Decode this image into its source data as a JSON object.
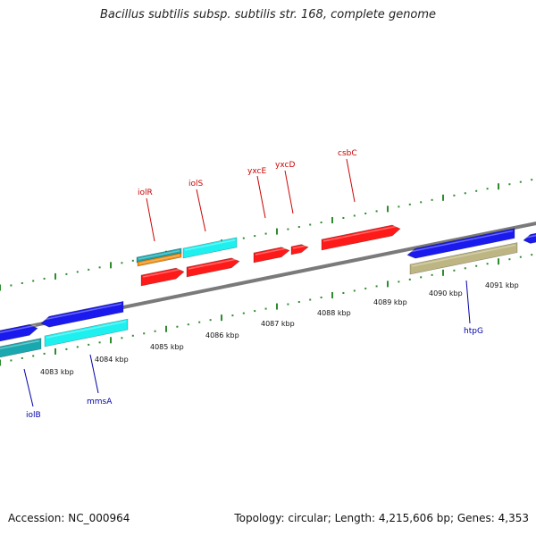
{
  "title": "Bacillus subtilis subsp. subtilis str. 168, complete genome",
  "footer": {
    "accession": "Accession: NC_000964",
    "stats": "Topology: circular; Length: 4,215,606 bp; Genes: 4,353"
  },
  "scale_labels": [
    "4083 kbp",
    "4084 kbp",
    "4085 kbp",
    "4086 kbp",
    "4087 kbp",
    "4088 kbp",
    "4089 kbp",
    "4090 kbp",
    "4091 kbp"
  ],
  "upper_gene_labels": [
    "iolR",
    "iolS",
    "yxcE",
    "yxcD",
    "csbC"
  ],
  "lower_gene_labels": [
    "iolB",
    "mmsA",
    "htpG"
  ],
  "colors": {
    "backbone": "#8a8a8a",
    "tick": "#2e8b2e",
    "upper_label": "#cc0000",
    "lower_label": "#0000aa",
    "red_gene": "#ff1a1a",
    "blue_gene": "#1a1aee",
    "cyan_gene": "#1ef0f0",
    "teal_gene": "#1aa8b0",
    "orange_gene": "#f08c10",
    "khaki_gene": "#bdb582"
  }
}
